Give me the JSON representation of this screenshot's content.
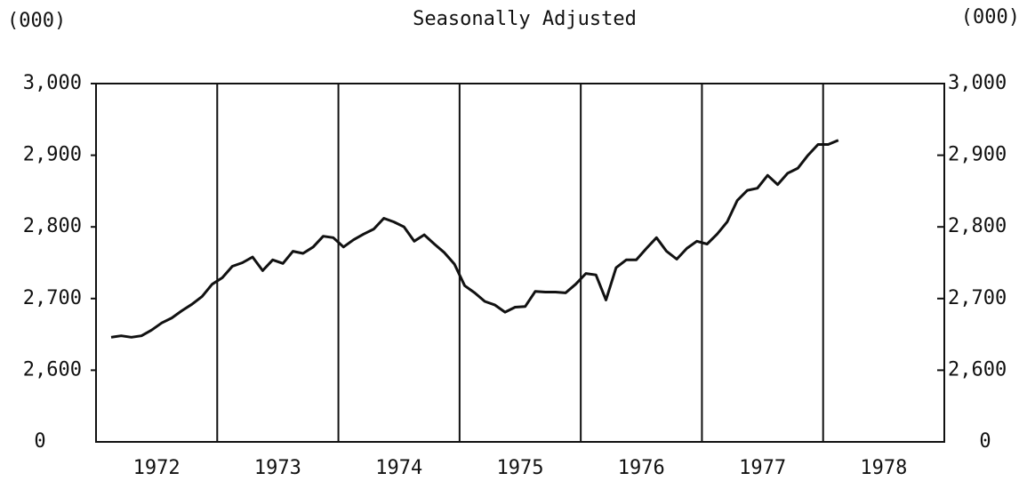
{
  "chart_data": {
    "type": "line",
    "subtitle": "Seasonally Adjusted",
    "y_unit_label": "(000)",
    "y2_unit_label": "(000)",
    "axis_break_label": "0",
    "xlim": [
      1972,
      1979
    ],
    "xticks": [
      {
        "value": 1972.5,
        "label": "1972"
      },
      {
        "value": 1973.5,
        "label": "1973"
      },
      {
        "value": 1974.5,
        "label": "1974"
      },
      {
        "value": 1975.5,
        "label": "1975"
      },
      {
        "value": 1976.5,
        "label": "1976"
      },
      {
        "value": 1977.5,
        "label": "1977"
      },
      {
        "value": 1978.5,
        "label": "1978"
      }
    ],
    "year_dividers": [
      1973,
      1974,
      1975,
      1976,
      1977,
      1978
    ],
    "ylim": [
      2500,
      3000
    ],
    "yticks": [
      {
        "value": 2600,
        "label": "2,600"
      },
      {
        "value": 2700,
        "label": "2,700"
      },
      {
        "value": 2800,
        "label": "2,800"
      },
      {
        "value": 2900,
        "label": "2,900"
      },
      {
        "value": 3000,
        "label": "3,000"
      }
    ],
    "y2lim": [
      2500,
      3000
    ],
    "y2ticks": [
      {
        "value": 2600,
        "label": "2,600"
      },
      {
        "value": 2700,
        "label": "2,700"
      },
      {
        "value": 2800,
        "label": "2,800"
      },
      {
        "value": 2900,
        "label": "2,900"
      },
      {
        "value": 3000,
        "label": "3,000"
      }
    ],
    "color": "#111111",
    "x": [
      1972.125,
      1972.208,
      1972.292,
      1972.375,
      1972.458,
      1972.542,
      1972.625,
      1972.708,
      1972.792,
      1972.875,
      1972.958,
      1973.042,
      1973.125,
      1973.208,
      1973.292,
      1973.375,
      1973.458,
      1973.542,
      1973.625,
      1973.708,
      1973.792,
      1973.875,
      1973.958,
      1974.042,
      1974.125,
      1974.208,
      1974.292,
      1974.375,
      1974.458,
      1974.542,
      1974.625,
      1974.708,
      1974.792,
      1974.875,
      1974.958,
      1975.042,
      1975.125,
      1975.208,
      1975.292,
      1975.375,
      1975.458,
      1975.542,
      1975.625,
      1975.708,
      1975.792,
      1975.875,
      1975.958,
      1976.042,
      1976.125,
      1976.208,
      1976.292,
      1976.375,
      1976.458,
      1976.542,
      1976.625,
      1976.708,
      1976.792,
      1976.875,
      1976.958,
      1977.042,
      1977.125,
      1977.208,
      1977.292,
      1977.375,
      1977.458,
      1977.542,
      1977.625,
      1977.708,
      1977.792,
      1977.875,
      1977.958,
      1978.042,
      1978.125
    ],
    "values": [
      2646,
      2648,
      2646,
      2648,
      2656,
      2666,
      2673,
      2683,
      2692,
      2703,
      2720,
      2729,
      2745,
      2750,
      2758,
      2739,
      2754,
      2749,
      2766,
      2763,
      2772,
      2787,
      2785,
      2772,
      2782,
      2790,
      2797,
      2812,
      2807,
      2800,
      2780,
      2789,
      2776,
      2764,
      2748,
      2718,
      2708,
      2696,
      2691,
      2681,
      2688,
      2689,
      2710,
      2709,
      2709,
      2708,
      2720,
      2735,
      2733,
      2698,
      2743,
      2754,
      2754,
      2770,
      2785,
      2766,
      2755,
      2770,
      2780,
      2776,
      2790,
      2807,
      2837,
      2851,
      2854,
      2872,
      2859,
      2875,
      2882,
      2900,
      2915,
      2915,
      2921
    ]
  }
}
